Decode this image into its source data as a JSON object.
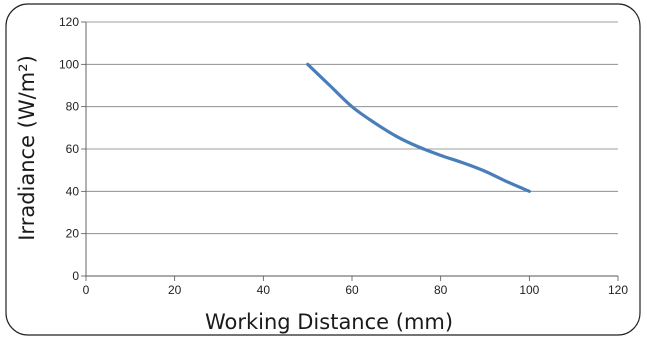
{
  "chart_data": {
    "type": "line",
    "title": "",
    "xlabel": "Working Distance (mm)",
    "ylabel": "Irradiance (W/m²)",
    "xlim": [
      0,
      120
    ],
    "ylim": [
      0,
      120
    ],
    "x_ticks": [
      "0",
      "20",
      "40",
      "60",
      "80",
      "100",
      "120"
    ],
    "y_ticks": [
      "0",
      "20",
      "40",
      "60",
      "80",
      "100",
      "120"
    ],
    "grid": "horizontal",
    "legend": "none",
    "series": [
      {
        "x": [
          50,
          55,
          60,
          65,
          70,
          75,
          80,
          85,
          90,
          95,
          100
        ],
        "y": [
          100,
          90,
          80,
          72.5,
          66,
          61,
          57,
          53.5,
          49.5,
          44.5,
          40
        ],
        "color": "#4a7ebb"
      }
    ]
  }
}
